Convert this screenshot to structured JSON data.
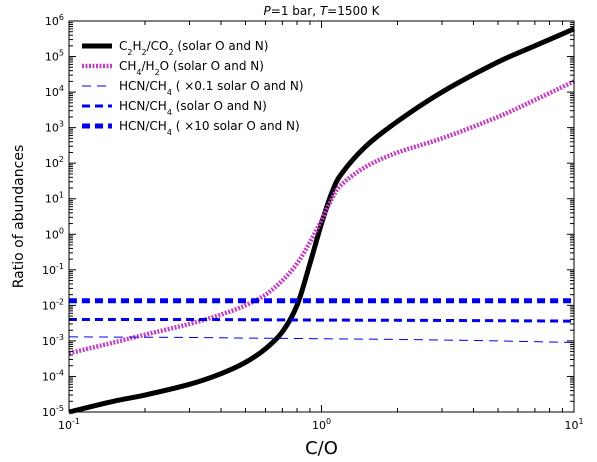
{
  "chart_data": {
    "type": "line",
    "title": {
      "segments": [
        {
          "t": "P",
          "italic": true
        },
        {
          "t": "=1 bar, "
        },
        {
          "t": "T",
          "italic": true
        },
        {
          "t": "=1500 K"
        }
      ]
    },
    "xlabel": "C/O",
    "ylabel": "Ratio of abundances",
    "xscale": "log",
    "yscale": "log",
    "xlim": [
      0.1,
      10
    ],
    "ylim": [
      1e-05,
      1000000.0
    ],
    "x_ticks": [
      {
        "base": "10",
        "exp": "-1"
      },
      {
        "base": "10",
        "exp": "0"
      },
      {
        "base": "10",
        "exp": "1"
      }
    ],
    "y_ticks": [
      {
        "base": "10",
        "exp": "-5"
      },
      {
        "base": "10",
        "exp": "-4"
      },
      {
        "base": "10",
        "exp": "-3"
      },
      {
        "base": "10",
        "exp": "-2"
      },
      {
        "base": "10",
        "exp": "-1"
      },
      {
        "base": "10",
        "exp": "0"
      },
      {
        "base": "10",
        "exp": "1"
      },
      {
        "base": "10",
        "exp": "2"
      },
      {
        "base": "10",
        "exp": "3"
      },
      {
        "base": "10",
        "exp": "4"
      },
      {
        "base": "10",
        "exp": "5"
      },
      {
        "base": "10",
        "exp": "6"
      }
    ],
    "legend_position": "top-left",
    "series": [
      {
        "label": [
          {
            "t": "C"
          },
          {
            "t": "2",
            "sub": true
          },
          {
            "t": "H"
          },
          {
            "t": "2",
            "sub": true
          },
          {
            "t": "/CO"
          },
          {
            "t": "2",
            "sub": true
          },
          {
            "t": " (solar O and N)"
          }
        ],
        "color": "#000000",
        "style": "solid",
        "weight": "thick",
        "x": [
          0.1,
          0.15,
          0.2,
          0.3,
          0.4,
          0.5,
          0.6,
          0.7,
          0.8,
          0.9,
          1.0,
          1.1,
          1.2,
          1.5,
          2,
          3,
          5,
          7,
          10
        ],
        "y": [
          1e-05,
          2e-05,
          3e-05,
          6e-05,
          0.00012,
          0.00025,
          0.0006,
          0.0018,
          0.01,
          0.15,
          2.0,
          15.0,
          50.0,
          300.0,
          1500.0,
          10000.0,
          70000.0,
          200000.0,
          600000.0
        ]
      },
      {
        "label": [
          {
            "t": "CH"
          },
          {
            "t": "4",
            "sub": true
          },
          {
            "t": "/H"
          },
          {
            "t": "2",
            "sub": true
          },
          {
            "t": "O (solar O and N)"
          }
        ],
        "color": "#c040c0",
        "style": "dotted",
        "weight": "thick",
        "x": [
          0.1,
          0.15,
          0.2,
          0.3,
          0.4,
          0.5,
          0.6,
          0.7,
          0.8,
          0.9,
          1.0,
          1.1,
          1.2,
          1.5,
          2,
          3,
          5,
          7,
          10
        ],
        "y": [
          0.00045,
          0.0009,
          0.0015,
          0.003,
          0.0055,
          0.01,
          0.02,
          0.05,
          0.15,
          0.6,
          2.5,
          10.0,
          25.0,
          80.0,
          200.0,
          500.0,
          2000.0,
          6000.0,
          20000.0
        ]
      },
      {
        "label": [
          {
            "t": "HCN/CH"
          },
          {
            "t": "4",
            "sub": true
          },
          {
            "t": "  ( ×0.1 solar O and N)"
          }
        ],
        "color": "#0000ee",
        "style": "dashed",
        "weight": "thin",
        "x": [
          0.1,
          0.3,
          0.5,
          0.7,
          1.0,
          2,
          5,
          10
        ],
        "y": [
          0.0013,
          0.00125,
          0.0012,
          0.00118,
          0.00115,
          0.0011,
          0.001,
          0.0009
        ]
      },
      {
        "label": [
          {
            "t": "HCN/CH"
          },
          {
            "t": "4",
            "sub": true
          },
          {
            "t": "  (solar O and N)"
          }
        ],
        "color": "#0000ee",
        "style": "dashed",
        "weight": "medium",
        "x": [
          0.1,
          0.3,
          0.5,
          0.7,
          1.0,
          2,
          5,
          10
        ],
        "y": [
          0.004,
          0.004,
          0.00395,
          0.0039,
          0.00385,
          0.0038,
          0.0037,
          0.0036
        ]
      },
      {
        "label": [
          {
            "t": "HCN/CH"
          },
          {
            "t": "4",
            "sub": true
          },
          {
            "t": "  ( ×10 solar O and N)"
          }
        ],
        "color": "#0000ee",
        "style": "dashed",
        "weight": "thick",
        "x": [
          0.1,
          0.3,
          0.5,
          0.7,
          1.0,
          2,
          5,
          10
        ],
        "y": [
          0.0135,
          0.0135,
          0.0135,
          0.0135,
          0.0135,
          0.0135,
          0.0135,
          0.0135
        ]
      }
    ]
  }
}
